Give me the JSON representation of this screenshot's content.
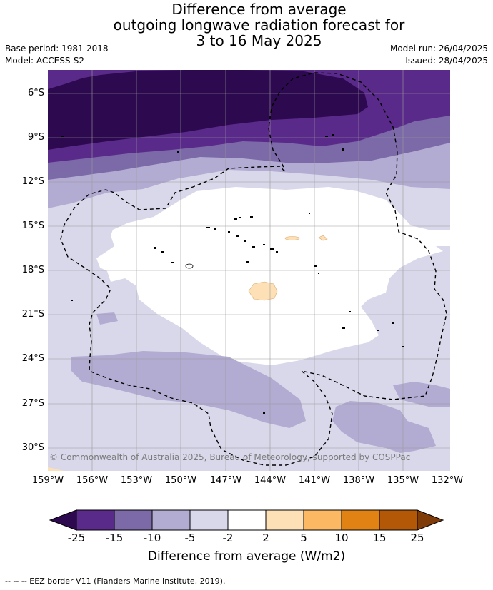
{
  "title": {
    "line1": "Difference from average",
    "line2": "outgoing longwave radiation forecast for",
    "line3": "3 to 16 May 2025"
  },
  "meta": {
    "base_period": "Base period: 1981-2018",
    "model": "Model: ACCESS-S2",
    "model_run": "Model run: 26/04/2025",
    "issued": "Issued: 28/04/2025"
  },
  "lat_labels": [
    "6°S",
    "9°S",
    "12°S",
    "15°S",
    "18°S",
    "21°S",
    "24°S",
    "27°S",
    "30°S"
  ],
  "lon_labels": [
    "159°W",
    "156°W",
    "153°W",
    "150°W",
    "147°W",
    "144°W",
    "141°W",
    "138°W",
    "135°W",
    "132°W"
  ],
  "copyright": "© Commonwealth of Australia 2025, Bureau of Meteorology, supported by COSPPac",
  "colorbar": {
    "ticks": [
      "-25",
      "-15",
      "-10",
      "-5",
      "-2",
      "2",
      "5",
      "10",
      "15",
      "25"
    ],
    "colors": [
      "#2d0a50",
      "#5a2a8a",
      "#7c6aa8",
      "#b2abd2",
      "#d8d8ea",
      "#ffffff",
      "#fee0b6",
      "#fdb863",
      "#e08214",
      "#b35806",
      "#7f3b08"
    ],
    "label": "Difference from average (W/m2)"
  },
  "eez_note": "-- -- -- EEZ border V11 (Flanders Marine Institute, 2019)."
}
